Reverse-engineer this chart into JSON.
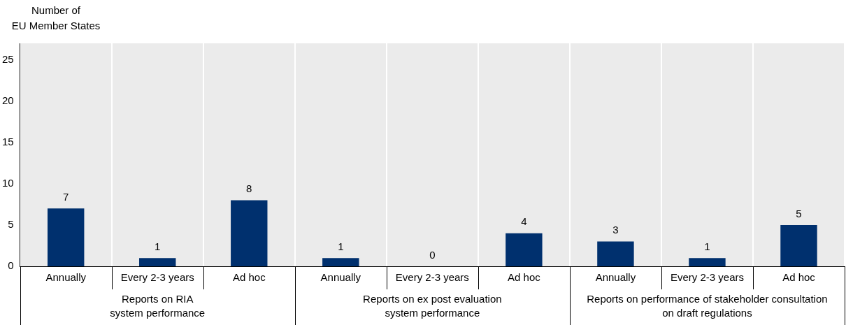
{
  "chart_data": {
    "type": "bar",
    "ylabel": "Number of\nEU Member States",
    "categories": [
      "Annually",
      "Every 2-3 years",
      "Ad hoc",
      "Annually",
      "Every 2-3 years",
      "Ad hoc",
      "Annually",
      "Every 2-3 years",
      "Ad hoc"
    ],
    "values": [
      7,
      1,
      8,
      1,
      0,
      4,
      3,
      1,
      5
    ],
    "value_labels": [
      "7",
      "1",
      "8",
      "1",
      "0",
      "4",
      "3",
      "1",
      "5"
    ],
    "color": "#00306e",
    "annotations": [
      "Reports on RIA\nsystem performance",
      "Reports on ex post evaluation\nsystem performance",
      "Reports on performance of stakeholder consultation\non draft regulations"
    ],
    "ylim": [
      0,
      27
    ],
    "yticks": [
      0,
      5,
      10,
      15,
      20,
      25
    ],
    "grid": "x",
    "legend": false
  }
}
